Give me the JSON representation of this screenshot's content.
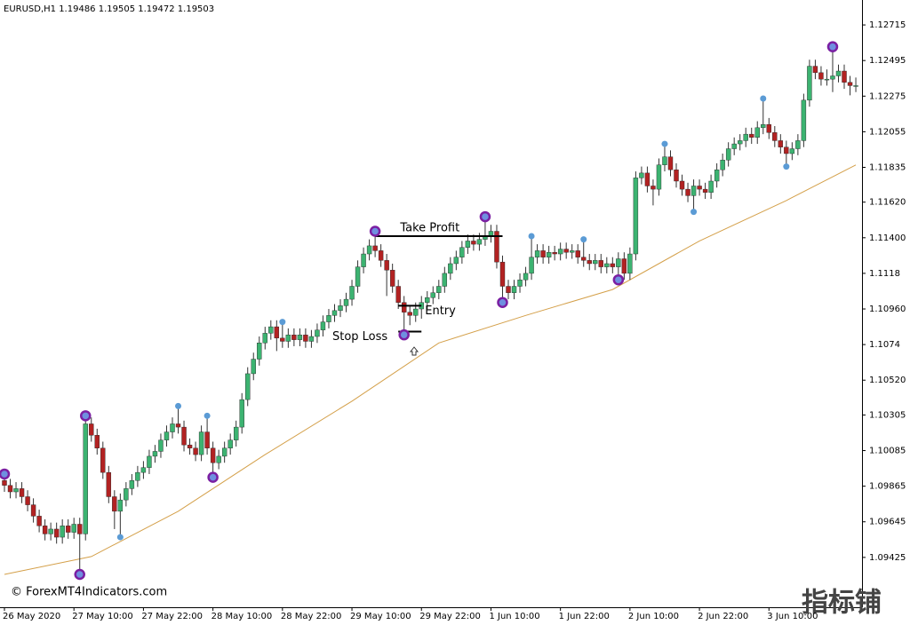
{
  "chart_data": {
    "type": "candlestick",
    "title": "EURUSD,H1  1.19486 1.19505 1.19472 1.19503",
    "watermark": "© ForexMT4Indicators.com",
    "corner_logo": "指标铺",
    "up_color": "#3cb371",
    "down_color": "#b22222",
    "wick_color": "#333333",
    "ylim": [
      1.09117,
      1.12869
    ],
    "yticks": [
      1.12715,
      1.12495,
      1.12275,
      1.12055,
      1.11835,
      {
        "value": 1.1162,
        "label": "1.11620"
      },
      {
        "value": 1.114,
        "label": "1.11400"
      },
      1.1118,
      {
        "value": 1.1096,
        "label": "1.10960"
      },
      1.1074,
      {
        "value": 1.1052,
        "label": "1.10520"
      },
      1.10305,
      1.10085,
      1.09865,
      1.09645,
      1.09425
    ],
    "xlim": [
      0,
      147.3
    ],
    "xticks": [
      {
        "value": 0,
        "label": "26 May 2020"
      },
      {
        "value": 12,
        "label": "27 May 10:00"
      },
      {
        "value": 24,
        "label": "27 May 22:00"
      },
      {
        "value": 36,
        "label": "28 May 10:00"
      },
      {
        "value": 48,
        "label": "28 May 22:00"
      },
      {
        "value": 60,
        "label": "29 May 10:00"
      },
      {
        "value": 72,
        "label": "29 May 22:00"
      },
      {
        "value": 84,
        "label": "1 Jun 10:00"
      },
      {
        "value": 96,
        "label": "1 Jun 22:00"
      },
      {
        "value": 108,
        "label": "2 Jun 10:00"
      },
      {
        "value": 120,
        "label": "2 Jun 22:00"
      },
      {
        "value": 132,
        "label": "3 Jun 10:00"
      }
    ],
    "ohlc": [
      [
        1.099,
        1.0994,
        1.0983,
        1.0987
      ],
      [
        1.0987,
        1.0991,
        1.0979,
        1.0983
      ],
      [
        1.0983,
        1.0989,
        1.0979,
        1.0985
      ],
      [
        1.0985,
        1.0989,
        1.0976,
        1.098
      ],
      [
        1.098,
        1.0984,
        1.0971,
        1.0975
      ],
      [
        1.0975,
        1.0979,
        1.0964,
        1.0968
      ],
      [
        1.0968,
        1.0972,
        1.0958,
        1.0962
      ],
      [
        1.0962,
        1.0966,
        1.0953,
        1.0957
      ],
      [
        1.0957,
        1.0964,
        1.0953,
        1.096
      ],
      [
        1.096,
        1.0964,
        1.0951,
        1.0955
      ],
      [
        1.0955,
        1.0966,
        1.0951,
        1.0962
      ],
      [
        1.0962,
        1.0966,
        1.0954,
        1.0958
      ],
      [
        1.0958,
        1.0967,
        1.0954,
        1.0963
      ],
      [
        1.0963,
        1.0967,
        1.0932,
        1.0957
      ],
      [
        1.0957,
        1.103,
        1.0953,
        1.1025
      ],
      [
        1.1025,
        1.1029,
        1.1014,
        1.1018
      ],
      [
        1.1018,
        1.1022,
        1.1006,
        1.101
      ],
      [
        1.101,
        1.1014,
        1.0991,
        1.0995
      ],
      [
        1.0995,
        1.0999,
        1.0976,
        1.098
      ],
      [
        1.098,
        1.0984,
        1.096,
        1.0971
      ],
      [
        1.0971,
        1.0982,
        1.0955,
        1.0978
      ],
      [
        1.0978,
        1.0989,
        1.0974,
        1.0985
      ],
      [
        1.0985,
        1.0994,
        1.0981,
        1.099
      ],
      [
        1.099,
        1.0999,
        1.0986,
        1.0995
      ],
      [
        1.0995,
        1.1002,
        1.0991,
        1.0998
      ],
      [
        1.0998,
        1.1009,
        1.0994,
        1.1005
      ],
      [
        1.1005,
        1.1012,
        1.1001,
        1.1008
      ],
      [
        1.1008,
        1.1019,
        1.1004,
        1.1015
      ],
      [
        1.1015,
        1.1024,
        1.1011,
        1.102
      ],
      [
        1.102,
        1.1029,
        1.1016,
        1.1025
      ],
      [
        1.1025,
        1.1036,
        1.1019,
        1.1023
      ],
      [
        1.1023,
        1.1027,
        1.1008,
        1.1012
      ],
      [
        1.1012,
        1.1016,
        1.1006,
        1.101
      ],
      [
        1.101,
        1.1014,
        1.1002,
        1.1006
      ],
      [
        1.1006,
        1.1024,
        1.1002,
        1.102
      ],
      [
        1.102,
        1.103,
        1.1006,
        1.101
      ],
      [
        1.101,
        1.1014,
        1.0992,
        1.1001
      ],
      [
        1.1001,
        1.1009,
        1.0997,
        1.1005
      ],
      [
        1.1005,
        1.1014,
        1.1001,
        1.101
      ],
      [
        1.101,
        1.1019,
        1.1006,
        1.1015
      ],
      [
        1.1015,
        1.1027,
        1.1011,
        1.1023
      ],
      [
        1.1023,
        1.1044,
        1.1019,
        1.104
      ],
      [
        1.104,
        1.106,
        1.1036,
        1.1056
      ],
      [
        1.1056,
        1.1069,
        1.1052,
        1.1065
      ],
      [
        1.1065,
        1.1079,
        1.1061,
        1.1075
      ],
      [
        1.1075,
        1.1085,
        1.1071,
        1.1081
      ],
      [
        1.1081,
        1.1089,
        1.1077,
        1.1085
      ],
      [
        1.1085,
        1.1089,
        1.107,
        1.1078
      ],
      [
        1.1078,
        1.1088,
        1.1072,
        1.1076
      ],
      [
        1.1076,
        1.1084,
        1.1072,
        1.108
      ],
      [
        1.108,
        1.1084,
        1.1073,
        1.1077
      ],
      [
        1.1077,
        1.1084,
        1.1073,
        1.108
      ],
      [
        1.108,
        1.1084,
        1.1072,
        1.1076
      ],
      [
        1.1076,
        1.1083,
        1.1072,
        1.1079
      ],
      [
        1.1079,
        1.1087,
        1.1075,
        1.1083
      ],
      [
        1.1083,
        1.1092,
        1.1079,
        1.1088
      ],
      [
        1.1088,
        1.1096,
        1.1084,
        1.1092
      ],
      [
        1.1092,
        1.1099,
        1.1088,
        1.1095
      ],
      [
        1.1095,
        1.1102,
        1.1091,
        1.1098
      ],
      [
        1.1098,
        1.1106,
        1.1094,
        1.1102
      ],
      [
        1.1102,
        1.1114,
        1.1098,
        1.111
      ],
      [
        1.111,
        1.1126,
        1.1106,
        1.1122
      ],
      [
        1.1122,
        1.1134,
        1.1118,
        1.113
      ],
      [
        1.113,
        1.1139,
        1.1126,
        1.1135
      ],
      [
        1.1135,
        1.1144,
        1.1128,
        1.1132
      ],
      [
        1.1132,
        1.1136,
        1.1122,
        1.1126
      ],
      [
        1.1126,
        1.113,
        1.1104,
        1.112
      ],
      [
        1.112,
        1.1124,
        1.1106,
        1.111
      ],
      [
        1.111,
        1.1114,
        1.1096,
        1.11
      ],
      [
        1.11,
        1.1104,
        1.108,
        1.1094
      ],
      [
        1.1094,
        1.1098,
        1.1086,
        1.1092
      ],
      [
        1.1092,
        1.11,
        1.1088,
        1.1096
      ],
      [
        1.1096,
        1.1104,
        1.109,
        1.11
      ],
      [
        1.11,
        1.1107,
        1.1096,
        1.1103
      ],
      [
        1.1103,
        1.111,
        1.1099,
        1.1106
      ],
      [
        1.1106,
        1.1114,
        1.1102,
        1.111
      ],
      [
        1.111,
        1.1122,
        1.1106,
        1.1118
      ],
      [
        1.1118,
        1.1128,
        1.1114,
        1.1124
      ],
      [
        1.1124,
        1.1132,
        1.112,
        1.1128
      ],
      [
        1.1128,
        1.1138,
        1.1124,
        1.1134
      ],
      [
        1.1134,
        1.1142,
        1.113,
        1.1138
      ],
      [
        1.1138,
        1.1142,
        1.1132,
        1.1136
      ],
      [
        1.1136,
        1.1143,
        1.1132,
        1.1139
      ],
      [
        1.1139,
        1.1153,
        1.1135,
        1.1141
      ],
      [
        1.1141,
        1.1148,
        1.1137,
        1.1144
      ],
      [
        1.1144,
        1.1148,
        1.1121,
        1.1125
      ],
      [
        1.1125,
        1.1129,
        1.11,
        1.111
      ],
      [
        1.111,
        1.1114,
        1.1102,
        1.1106
      ],
      [
        1.1106,
        1.1114,
        1.1102,
        1.111
      ],
      [
        1.111,
        1.1118,
        1.1106,
        1.1114
      ],
      [
        1.1114,
        1.1122,
        1.111,
        1.1118
      ],
      [
        1.1118,
        1.1141,
        1.1114,
        1.1128
      ],
      [
        1.1128,
        1.1136,
        1.1124,
        1.1132
      ],
      [
        1.1132,
        1.1136,
        1.1124,
        1.1128
      ],
      [
        1.1128,
        1.1135,
        1.1124,
        1.1131
      ],
      [
        1.1131,
        1.1135,
        1.1126,
        1.113
      ],
      [
        1.113,
        1.1137,
        1.1126,
        1.1133
      ],
      [
        1.1133,
        1.1137,
        1.1127,
        1.1131
      ],
      [
        1.1131,
        1.1136,
        1.1127,
        1.1132
      ],
      [
        1.1132,
        1.1136,
        1.1124,
        1.1128
      ],
      [
        1.1128,
        1.1139,
        1.1122,
        1.1126
      ],
      [
        1.1126,
        1.113,
        1.112,
        1.1124
      ],
      [
        1.1124,
        1.113,
        1.112,
        1.1126
      ],
      [
        1.1126,
        1.113,
        1.1118,
        1.1122
      ],
      [
        1.1122,
        1.1128,
        1.1118,
        1.1124
      ],
      [
        1.1124,
        1.1128,
        1.1118,
        1.1122
      ],
      [
        1.1122,
        1.1131,
        1.1114,
        1.1127
      ],
      [
        1.1127,
        1.1131,
        1.1114,
        1.1118
      ],
      [
        1.1118,
        1.1134,
        1.1114,
        1.113
      ],
      [
        1.113,
        1.1181,
        1.1126,
        1.1177
      ],
      [
        1.1177,
        1.1184,
        1.1173,
        1.118
      ],
      [
        1.118,
        1.1184,
        1.1168,
        1.1172
      ],
      [
        1.1172,
        1.1176,
        1.116,
        1.117
      ],
      [
        1.117,
        1.1189,
        1.1166,
        1.1185
      ],
      [
        1.1185,
        1.1198,
        1.1181,
        1.119
      ],
      [
        1.119,
        1.1194,
        1.1178,
        1.1182
      ],
      [
        1.1182,
        1.1186,
        1.1171,
        1.1175
      ],
      [
        1.1175,
        1.1179,
        1.1166,
        1.117
      ],
      [
        1.117,
        1.1174,
        1.1162,
        1.1166
      ],
      [
        1.1166,
        1.1176,
        1.1156,
        1.1172
      ],
      [
        1.1172,
        1.1176,
        1.1166,
        1.117
      ],
      [
        1.117,
        1.1174,
        1.1164,
        1.1168
      ],
      [
        1.1168,
        1.1179,
        1.1164,
        1.1175
      ],
      [
        1.1175,
        1.1186,
        1.1171,
        1.1182
      ],
      [
        1.1182,
        1.1192,
        1.1178,
        1.1188
      ],
      [
        1.1188,
        1.1199,
        1.1184,
        1.1195
      ],
      [
        1.1195,
        1.1202,
        1.1191,
        1.1198
      ],
      [
        1.1198,
        1.1204,
        1.1194,
        1.12
      ],
      [
        1.12,
        1.1208,
        1.1196,
        1.1204
      ],
      [
        1.1204,
        1.1208,
        1.1198,
        1.1202
      ],
      [
        1.1202,
        1.1212,
        1.1198,
        1.1208
      ],
      [
        1.1208,
        1.1226,
        1.1204,
        1.121
      ],
      [
        1.121,
        1.1214,
        1.1201,
        1.1205
      ],
      [
        1.1205,
        1.1209,
        1.1196,
        1.12
      ],
      [
        1.12,
        1.1204,
        1.1192,
        1.1196
      ],
      [
        1.1196,
        1.12,
        1.1184,
        1.1192
      ],
      [
        1.1192,
        1.1199,
        1.1188,
        1.1195
      ],
      [
        1.1195,
        1.1204,
        1.1191,
        1.12
      ],
      [
        1.12,
        1.1229,
        1.1196,
        1.1225
      ],
      [
        1.1225,
        1.125,
        1.1221,
        1.1246
      ],
      [
        1.1246,
        1.125,
        1.1238,
        1.1242
      ],
      [
        1.1242,
        1.1246,
        1.1234,
        1.1238
      ],
      [
        1.1238,
        1.1244,
        1.1234,
        1.1238
      ],
      [
        1.1238,
        1.1258,
        1.123,
        1.124
      ],
      [
        1.124,
        1.1247,
        1.1236,
        1.1243
      ],
      [
        1.1243,
        1.1247,
        1.1232,
        1.1236
      ],
      [
        1.1236,
        1.124,
        1.1228,
        1.1234
      ],
      [
        1.1234,
        1.1239,
        1.123,
        1.1234
      ]
    ],
    "moving_average": {
      "color": "#d4a04a",
      "x": [
        0,
        15,
        30,
        45,
        60,
        75,
        90,
        105,
        120,
        135,
        147
      ],
      "values": [
        1.0932,
        1.0943,
        1.0971,
        1.1006,
        1.1039,
        1.1075,
        1.1092,
        1.1108,
        1.1138,
        1.1163,
        1.1185
      ]
    },
    "signals": [
      {
        "color": "#7b1fa2",
        "ring": true,
        "x": [
          0,
          13,
          14,
          36,
          64,
          69,
          83,
          86,
          106,
          143
        ],
        "values": [
          1.0994,
          1.0932,
          1.103,
          1.0992,
          1.1144,
          1.108,
          1.1153,
          1.11,
          1.1114,
          1.1258
        ]
      },
      {
        "color": "#5b9bd5",
        "ring": false,
        "x": [
          20,
          30,
          35,
          48,
          91,
          100,
          114,
          119,
          131,
          135
        ],
        "values": [
          1.0955,
          1.1036,
          1.103,
          1.1088,
          1.1141,
          1.1139,
          1.1198,
          1.1156,
          1.1226,
          1.1184
        ]
      }
    ],
    "levels": [
      {
        "label": "Take Profit",
        "value": 1.1141,
        "from": 64,
        "to": 86,
        "label_side": "above"
      },
      {
        "label": "Entry",
        "value": 1.1098,
        "from": 68,
        "to": 72,
        "label_side": "right"
      },
      {
        "label": "Stop Loss",
        "value": 1.1082,
        "from": 68,
        "to": 72,
        "label_side": "left"
      }
    ]
  }
}
